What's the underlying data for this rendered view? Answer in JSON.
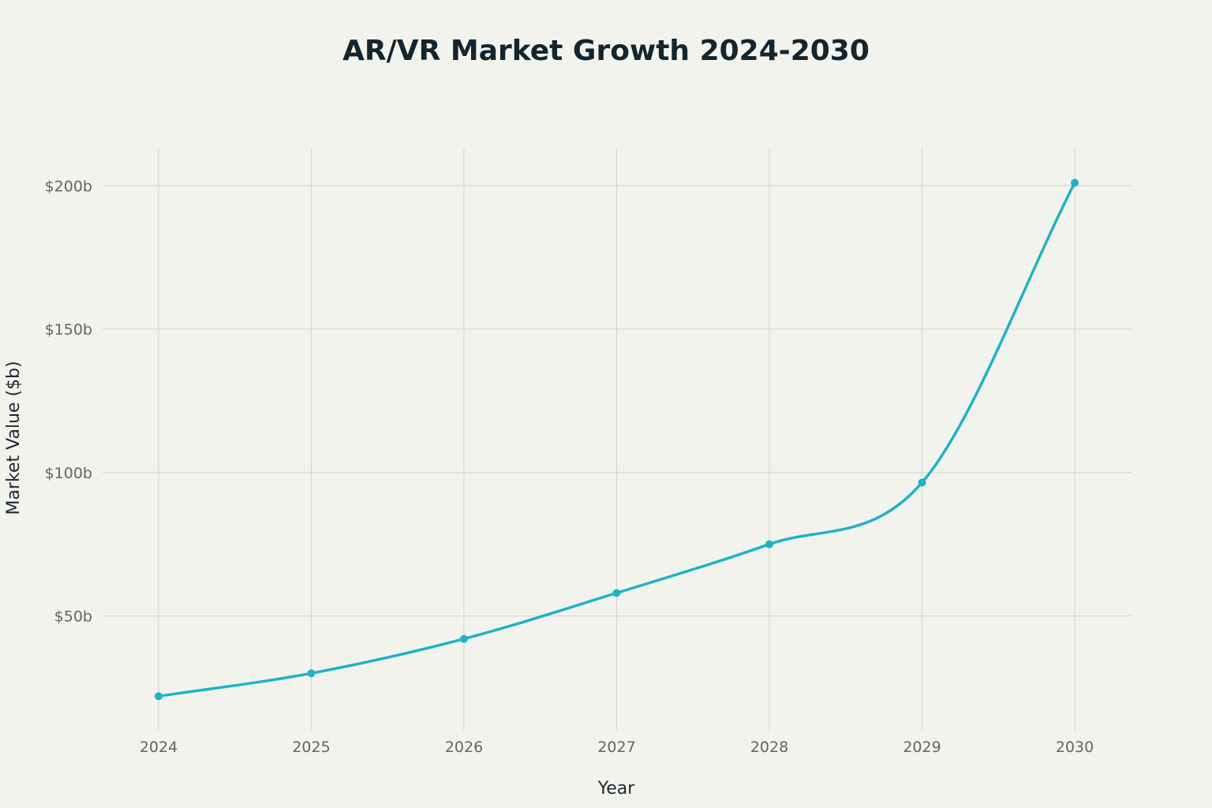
{
  "colors": {
    "background": "#f3f3ee",
    "series": "#1fb3c5",
    "grid": "#cfd2ce"
  },
  "chart_data": {
    "type": "line",
    "title": "AR/VR Market Growth 2024-2030",
    "xlabel": "Year",
    "ylabel": "Market Value ($b)",
    "x": [
      "2024",
      "2025",
      "2026",
      "2027",
      "2028",
      "2029",
      "2030"
    ],
    "series": [
      {
        "values": [
          22,
          30,
          42,
          58,
          75,
          96.5,
          201
        ]
      }
    ],
    "ylim": [
      10,
      213
    ],
    "yticks": [
      {
        "value": 50,
        "label": "$50b"
      },
      {
        "value": 100,
        "label": "$100b"
      },
      {
        "value": 150,
        "label": "$150b"
      },
      {
        "value": 200,
        "label": "$200b"
      }
    ],
    "grid": true,
    "legend": false,
    "smoothed": true,
    "markers": true
  }
}
